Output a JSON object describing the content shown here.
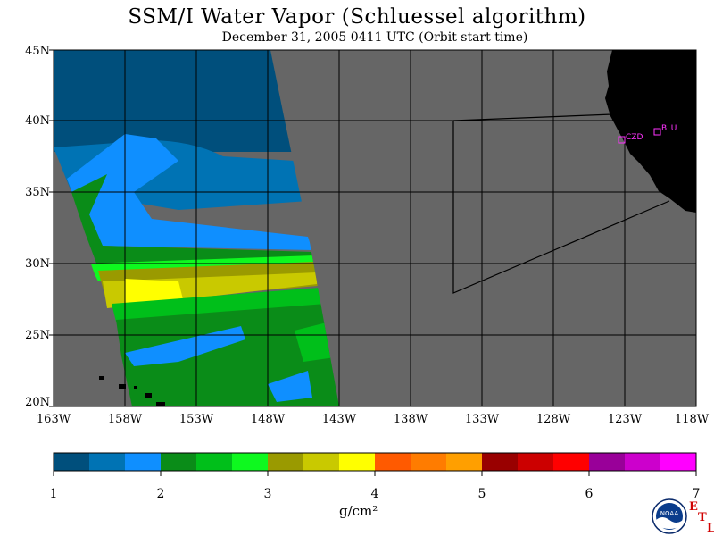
{
  "title": "SSM/I Water Vapor (Schluessel algorithm)",
  "subtitle": "December 31, 2005  0411 UTC  (Orbit start time)",
  "lat_labels": [
    "45N",
    "40N",
    "35N",
    "30N",
    "25N",
    "20N"
  ],
  "lon_labels": [
    "163W",
    "158W",
    "153W",
    "148W",
    "143W",
    "138W",
    "133W",
    "128W",
    "123W",
    "118W"
  ],
  "colorbar": {
    "colors": [
      "#004f7c",
      "#0073b4",
      "#0f8fff",
      "#0a8c18",
      "#00bf1a",
      "#0ef91f",
      "#9a9a00",
      "#c9c900",
      "#ffff00",
      "#ff5a00",
      "#ff7c00",
      "#ff9f00",
      "#990000",
      "#cc0000",
      "#ff0000",
      "#990099",
      "#cc00cc",
      "#ff00ff"
    ],
    "ticks": [
      "1",
      "2",
      "3",
      "4",
      "5",
      "6",
      "7"
    ],
    "units": "g/cm²"
  },
  "sites": [
    {
      "name": "CZD"
    },
    {
      "name": "BLU"
    }
  ],
  "logo": {
    "name": "NOAA",
    "etl": [
      "E",
      "T",
      "L"
    ]
  },
  "colors": {
    "land_no_data": "#666666",
    "land": "#000000",
    "grid": "#000000",
    "site_marker": "#ff33ff"
  }
}
